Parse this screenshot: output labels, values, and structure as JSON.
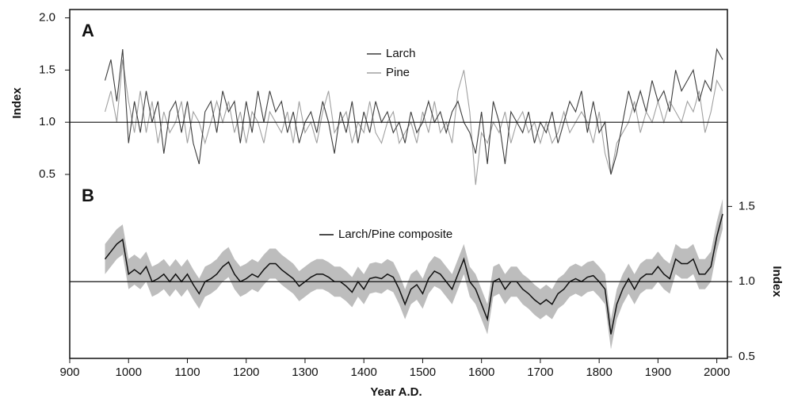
{
  "chart_data": [
    {
      "type": "line",
      "panel_label": "A",
      "ylabel": "Index",
      "xlim": [
        900,
        2018
      ],
      "ylim": [
        0.12,
        2.08
      ],
      "yticks": [
        0.5,
        {
          "value": 1.0,
          "label": "1.0"
        },
        1.5,
        {
          "value": 2.0,
          "label": "2.0"
        }
      ],
      "hline": 1.0,
      "x": [
        960,
        970,
        980,
        990,
        1000,
        1010,
        1020,
        1030,
        1040,
        1050,
        1060,
        1070,
        1080,
        1090,
        1100,
        1110,
        1120,
        1130,
        1140,
        1150,
        1160,
        1170,
        1180,
        1190,
        1200,
        1210,
        1220,
        1230,
        1240,
        1250,
        1260,
        1270,
        1280,
        1290,
        1300,
        1310,
        1320,
        1330,
        1340,
        1350,
        1360,
        1370,
        1380,
        1390,
        1400,
        1410,
        1420,
        1430,
        1440,
        1450,
        1460,
        1470,
        1480,
        1490,
        1500,
        1510,
        1520,
        1530,
        1540,
        1550,
        1560,
        1570,
        1580,
        1590,
        1600,
        1610,
        1620,
        1630,
        1640,
        1650,
        1660,
        1670,
        1680,
        1690,
        1700,
        1710,
        1720,
        1730,
        1740,
        1750,
        1760,
        1770,
        1780,
        1790,
        1800,
        1810,
        1820,
        1830,
        1840,
        1850,
        1860,
        1870,
        1880,
        1890,
        1900,
        1910,
        1920,
        1930,
        1940,
        1950,
        1960,
        1970,
        1980,
        1990,
        2000,
        2010
      ],
      "series": [
        {
          "name": "Pine",
          "color": "#a0a0a0",
          "values": [
            1.1,
            1.3,
            1.0,
            1.6,
            1.2,
            0.9,
            1.3,
            0.9,
            1.2,
            0.8,
            1.1,
            0.9,
            1.0,
            1.2,
            0.8,
            1.1,
            1.0,
            0.8,
            1.0,
            1.2,
            1.0,
            1.2,
            0.9,
            1.1,
            0.8,
            1.1,
            1.0,
            0.8,
            1.1,
            1.0,
            0.9,
            1.1,
            0.8,
            1.2,
            0.9,
            1.0,
            0.8,
            1.1,
            1.3,
            0.9,
            1.0,
            1.1,
            0.8,
            1.0,
            0.9,
            1.2,
            0.9,
            0.8,
            1.0,
            1.1,
            0.8,
            0.9,
            1.0,
            0.8,
            1.1,
            0.9,
            1.2,
            0.9,
            1.0,
            0.8,
            1.3,
            1.5,
            1.1,
            0.4,
            0.9,
            0.8,
            1.0,
            0.9,
            1.1,
            0.8,
            1.0,
            1.1,
            0.9,
            1.0,
            0.8,
            1.0,
            0.8,
            0.9,
            1.1,
            0.9,
            1.0,
            1.1,
            1.0,
            0.8,
            1.1,
            0.7,
            0.5,
            0.8,
            0.9,
            1.0,
            1.2,
            0.9,
            1.1,
            1.0,
            1.2,
            1.0,
            1.2,
            1.1,
            1.0,
            1.2,
            1.1,
            1.3,
            0.9,
            1.1,
            1.4,
            1.3
          ]
        },
        {
          "name": "Larch",
          "color": "#3c3c3c",
          "values": [
            1.4,
            1.6,
            1.2,
            1.7,
            0.8,
            1.2,
            0.9,
            1.3,
            1.0,
            1.2,
            0.7,
            1.1,
            1.2,
            0.9,
            1.2,
            0.8,
            0.6,
            1.1,
            1.2,
            0.9,
            1.3,
            1.1,
            1.2,
            0.8,
            1.2,
            0.9,
            1.3,
            1.0,
            1.3,
            1.1,
            1.2,
            0.9,
            1.1,
            0.8,
            1.0,
            1.1,
            0.9,
            1.2,
            1.0,
            0.7,
            1.1,
            0.9,
            1.2,
            0.8,
            1.1,
            0.9,
            1.2,
            1.0,
            1.1,
            0.9,
            1.0,
            0.8,
            1.1,
            0.9,
            1.0,
            1.2,
            1.0,
            1.1,
            0.9,
            1.1,
            1.2,
            1.0,
            0.9,
            0.7,
            1.1,
            0.6,
            1.2,
            1.0,
            0.6,
            1.1,
            1.0,
            0.9,
            1.1,
            0.8,
            1.0,
            0.9,
            1.1,
            0.8,
            1.0,
            1.2,
            1.1,
            1.3,
            0.9,
            1.2,
            0.9,
            1.0,
            0.5,
            0.7,
            1.0,
            1.3,
            1.1,
            1.3,
            1.1,
            1.4,
            1.2,
            1.3,
            1.1,
            1.5,
            1.3,
            1.4,
            1.5,
            1.2,
            1.4,
            1.3,
            1.7,
            1.6
          ]
        }
      ]
    },
    {
      "type": "band_line",
      "panel_label": "B",
      "ylabel": "Index",
      "xlabel": "Year A.D.",
      "xlim": [
        900,
        2018
      ],
      "ylim": [
        0.49,
        1.66
      ],
      "xticks": [
        900,
        1000,
        1100,
        1200,
        1300,
        1400,
        1500,
        1600,
        1700,
        1800,
        1900,
        2000
      ],
      "yticks": [
        0.5,
        {
          "value": 1.0,
          "label": "1.0"
        },
        1.5
      ],
      "hline": 1.0,
      "x": [
        960,
        970,
        980,
        990,
        1000,
        1010,
        1020,
        1030,
        1040,
        1050,
        1060,
        1070,
        1080,
        1090,
        1100,
        1110,
        1120,
        1130,
        1140,
        1150,
        1160,
        1170,
        1180,
        1190,
        1200,
        1210,
        1220,
        1230,
        1240,
        1250,
        1260,
        1270,
        1280,
        1290,
        1300,
        1310,
        1320,
        1330,
        1340,
        1350,
        1360,
        1370,
        1380,
        1390,
        1400,
        1410,
        1420,
        1430,
        1440,
        1450,
        1460,
        1470,
        1480,
        1490,
        1500,
        1510,
        1520,
        1530,
        1540,
        1550,
        1560,
        1570,
        1580,
        1590,
        1600,
        1610,
        1620,
        1630,
        1640,
        1650,
        1660,
        1670,
        1680,
        1690,
        1700,
        1710,
        1720,
        1730,
        1740,
        1750,
        1760,
        1770,
        1780,
        1790,
        1800,
        1810,
        1820,
        1830,
        1840,
        1850,
        1860,
        1870,
        1880,
        1890,
        1900,
        1910,
        1920,
        1930,
        1940,
        1950,
        1960,
        1970,
        1980,
        1990,
        2000,
        2010
      ],
      "series": [
        {
          "name": "Larch/Pine composite",
          "color": "#111111",
          "band_color": "#bdbdbd",
          "error": 0.1,
          "values": [
            1.15,
            1.2,
            1.25,
            1.28,
            1.05,
            1.08,
            1.05,
            1.1,
            1.0,
            1.02,
            1.05,
            1.0,
            1.05,
            1.0,
            1.05,
            0.98,
            0.92,
            1.0,
            1.02,
            1.05,
            1.1,
            1.13,
            1.05,
            1.0,
            1.02,
            1.05,
            1.03,
            1.08,
            1.12,
            1.12,
            1.08,
            1.05,
            1.02,
            0.97,
            1.0,
            1.03,
            1.05,
            1.05,
            1.03,
            1.0,
            1.0,
            0.97,
            0.93,
            1.0,
            0.95,
            1.02,
            1.03,
            1.02,
            1.05,
            1.03,
            0.95,
            0.85,
            0.95,
            0.98,
            0.92,
            1.02,
            1.07,
            1.05,
            1.0,
            0.95,
            1.05,
            1.15,
            1.0,
            0.95,
            0.85,
            0.75,
            1.0,
            1.02,
            0.95,
            1.0,
            1.0,
            0.95,
            0.92,
            0.88,
            0.85,
            0.88,
            0.85,
            0.92,
            0.95,
            1.0,
            1.02,
            1.0,
            1.03,
            1.04,
            1.0,
            0.95,
            0.65,
            0.85,
            0.95,
            1.02,
            0.95,
            1.02,
            1.05,
            1.05,
            1.1,
            1.05,
            1.02,
            1.15,
            1.12,
            1.12,
            1.15,
            1.05,
            1.05,
            1.1,
            1.3,
            1.45
          ]
        }
      ]
    }
  ]
}
